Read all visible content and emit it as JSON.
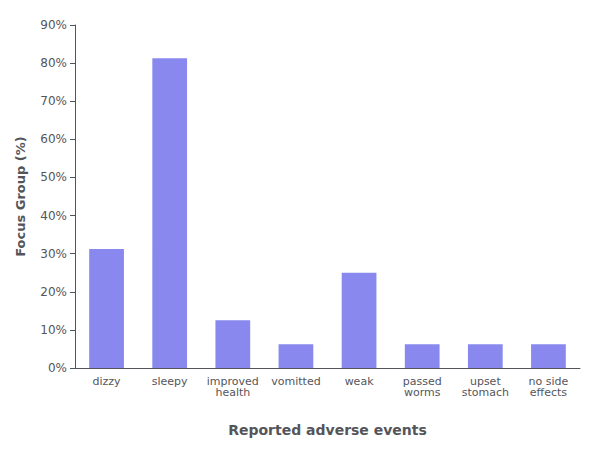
{
  "chart_data": {
    "type": "bar",
    "categories": [
      "dizzy",
      "sleepy",
      "improved\nhealth",
      "vomitted",
      "weak",
      "passed\nworms",
      "upset\nstomach",
      "no side\neffects"
    ],
    "values": [
      31.25,
      81.25,
      12.5,
      6.25,
      25.0,
      6.25,
      6.25,
      6.25
    ],
    "color": "#8888ee",
    "xlabel": "Reported adverse events",
    "ylabel": "Focus Group (%)",
    "ylim": [
      0,
      90
    ],
    "yticks": [
      {
        "value": 0,
        "label": "0%"
      },
      {
        "value": 10,
        "label": "10%"
      },
      {
        "value": 20,
        "label": "20%"
      },
      {
        "value": 30,
        "label": "30%"
      },
      {
        "value": 40,
        "label": "40%"
      },
      {
        "value": 50,
        "label": "50%"
      },
      {
        "value": 60,
        "label": "60%"
      },
      {
        "value": 70,
        "label": "70%"
      },
      {
        "value": 80,
        "label": "80%"
      },
      {
        "value": 90,
        "label": "90%"
      }
    ],
    "grid": false
  }
}
